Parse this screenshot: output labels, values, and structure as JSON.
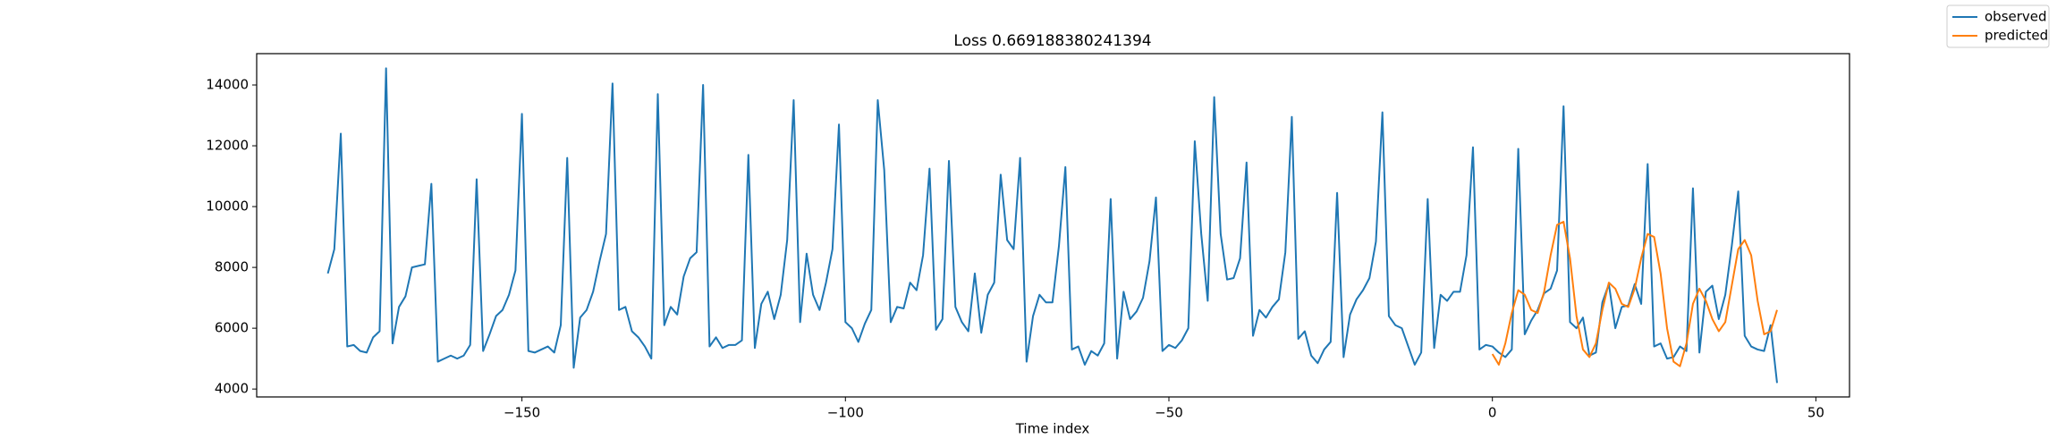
{
  "chart_data": {
    "type": "line",
    "title": "Loss 0.669188380241394",
    "xlabel": "Time index",
    "xlim": [
      -191,
      55.2
    ],
    "ylim": [
      3740,
      15030
    ],
    "xticks": [
      {
        "value": -150,
        "label": "−150"
      },
      {
        "value": -100,
        "label": "−100"
      },
      {
        "value": -50,
        "label": "−50"
      },
      0,
      50
    ],
    "yticks": [
      4000,
      6000,
      8000,
      10000,
      12000,
      14000
    ],
    "grid": false,
    "legend": "upper right",
    "series": [
      {
        "name": "observed",
        "color": "#1f77b4",
        "x": [
          -180,
          -179,
          -178,
          -177,
          -176,
          -175,
          -174,
          -173,
          -172,
          -171,
          -170,
          -169,
          -168,
          -167,
          -166,
          -165,
          -164,
          -163,
          -162,
          -161,
          -160,
          -159,
          -158,
          -157,
          -156,
          -155,
          -154,
          -153,
          -152,
          -151,
          -150,
          -149,
          -148,
          -147,
          -146,
          -145,
          -144,
          -143,
          -142,
          -141,
          -140,
          -139,
          -138,
          -137,
          -136,
          -135,
          -134,
          -133,
          -132,
          -131,
          -130,
          -129,
          -128,
          -127,
          -126,
          -125,
          -124,
          -123,
          -122,
          -121,
          -120,
          -119,
          -118,
          -117,
          -116,
          -115,
          -114,
          -113,
          -112,
          -111,
          -110,
          -109,
          -108,
          -107,
          -106,
          -105,
          -104,
          -103,
          -102,
          -101,
          -100,
          -99,
          -98,
          -97,
          -96,
          -95,
          -94,
          -93,
          -92,
          -91,
          -90,
          -89,
          -88,
          -87,
          -86,
          -85,
          -84,
          -83,
          -82,
          -81,
          -80,
          -79,
          -78,
          -77,
          -76,
          -75,
          -74,
          -73,
          -72,
          -71,
          -70,
          -69,
          -68,
          -67,
          -66,
          -65,
          -64,
          -63,
          -62,
          -61,
          -60,
          -59,
          -58,
          -57,
          -56,
          -55,
          -54,
          -53,
          -52,
          -51,
          -50,
          -49,
          -48,
          -47,
          -46,
          -45,
          -44,
          -43,
          -42,
          -41,
          -40,
          -39,
          -38,
          -37,
          -36,
          -35,
          -34,
          -33,
          -32,
          -31,
          -30,
          -29,
          -28,
          -27,
          -26,
          -25,
          -24,
          -23,
          -22,
          -21,
          -20,
          -19,
          -18,
          -17,
          -16,
          -15,
          -14,
          -13,
          -12,
          -11,
          -10,
          -9,
          -8,
          -7,
          -6,
          -5,
          -4,
          -3,
          -2,
          -1,
          0,
          1,
          2,
          3,
          4,
          5,
          6,
          7,
          8,
          9,
          10,
          11,
          12,
          13,
          14,
          15,
          16,
          17,
          18,
          19,
          20,
          21,
          22,
          23,
          24,
          25,
          26,
          27,
          28,
          29,
          30,
          31,
          32,
          33,
          34,
          35,
          36,
          37,
          38,
          39,
          40,
          41,
          42,
          43,
          44
        ],
        "values": [
          7800,
          8600,
          12400,
          5400,
          5450,
          5250,
          5200,
          5700,
          5900,
          14550,
          5500,
          6700,
          7050,
          8000,
          8050,
          8100,
          10750,
          4900,
          5000,
          5100,
          5000,
          5100,
          5450,
          10900,
          5250,
          5800,
          6400,
          6600,
          7100,
          7900,
          13050,
          5250,
          5200,
          5300,
          5400,
          5200,
          6100,
          11600,
          4700,
          6350,
          6600,
          7200,
          8200,
          9100,
          14050,
          6600,
          6700,
          5900,
          5700,
          5400,
          5000,
          13700,
          6100,
          6700,
          6450,
          7700,
          8300,
          8500,
          14000,
          5400,
          5700,
          5350,
          5450,
          5450,
          5600,
          11700,
          5350,
          6800,
          7200,
          6300,
          7100,
          8900,
          13500,
          6200,
          8450,
          7100,
          6600,
          7500,
          8600,
          12700,
          6200,
          6000,
          5550,
          6150,
          6600,
          13500,
          11200,
          6200,
          6700,
          6650,
          7500,
          7250,
          8400,
          11250,
          5950,
          6300,
          11500,
          6700,
          6200,
          5900,
          7800,
          5850,
          7100,
          7500,
          11050,
          8900,
          8600,
          11600,
          4900,
          6400,
          7100,
          6850,
          6850,
          8700,
          11300,
          5300,
          5400,
          4800,
          5250,
          5100,
          5500,
          10250,
          5000,
          7200,
          6300,
          6550,
          7000,
          8200,
          10300,
          5250,
          5450,
          5350,
          5600,
          6000,
          12150,
          9100,
          6900,
          13600,
          9100,
          7600,
          7650,
          8300,
          11450,
          5750,
          6600,
          6350,
          6700,
          6950,
          8500,
          12950,
          5650,
          5900,
          5100,
          4850,
          5300,
          5550,
          10450,
          5050,
          6450,
          6950,
          7250,
          7650,
          8850,
          13100,
          6400,
          6100,
          6000,
          5400,
          4800,
          5200,
          10250,
          5350,
          7100,
          6900,
          7200,
          7200,
          8400,
          11950,
          5300,
          5450,
          5400,
          5200,
          5050,
          5300,
          11900,
          5800,
          6250,
          6600,
          7150,
          7300,
          7900,
          13300,
          6200,
          6000,
          6350,
          5100,
          5200,
          6850,
          7450,
          6000,
          6700,
          6750,
          7450,
          6800,
          11400,
          5400,
          5500,
          5000,
          5050,
          5400,
          5250,
          10600,
          5200,
          7200,
          7400,
          6300,
          7100,
          8700,
          10500,
          5750,
          5400,
          5300,
          5250,
          6100,
          4200
        ]
      },
      {
        "name": "predicted",
        "color": "#ff7f0e",
        "x": [
          0,
          1,
          2,
          3,
          4,
          5,
          6,
          7,
          8,
          9,
          10,
          11,
          12,
          13,
          14,
          15,
          16,
          17,
          18,
          19,
          20,
          21,
          22,
          23,
          24,
          25,
          26,
          27,
          28,
          29,
          30,
          31,
          32,
          33,
          34,
          35,
          36,
          37,
          38,
          39,
          40,
          41,
          42,
          43,
          44
        ],
        "values": [
          5150,
          4800,
          5500,
          6500,
          7250,
          7100,
          6600,
          6500,
          7200,
          8400,
          9400,
          9500,
          8300,
          6400,
          5300,
          5050,
          5500,
          6600,
          7500,
          7300,
          6800,
          6700,
          7300,
          8300,
          9100,
          9000,
          7800,
          6000,
          4900,
          4750,
          5500,
          6800,
          7300,
          6900,
          6300,
          5900,
          6200,
          7400,
          8600,
          8900,
          8400,
          6900,
          5800,
          5900,
          6600
        ]
      }
    ]
  }
}
